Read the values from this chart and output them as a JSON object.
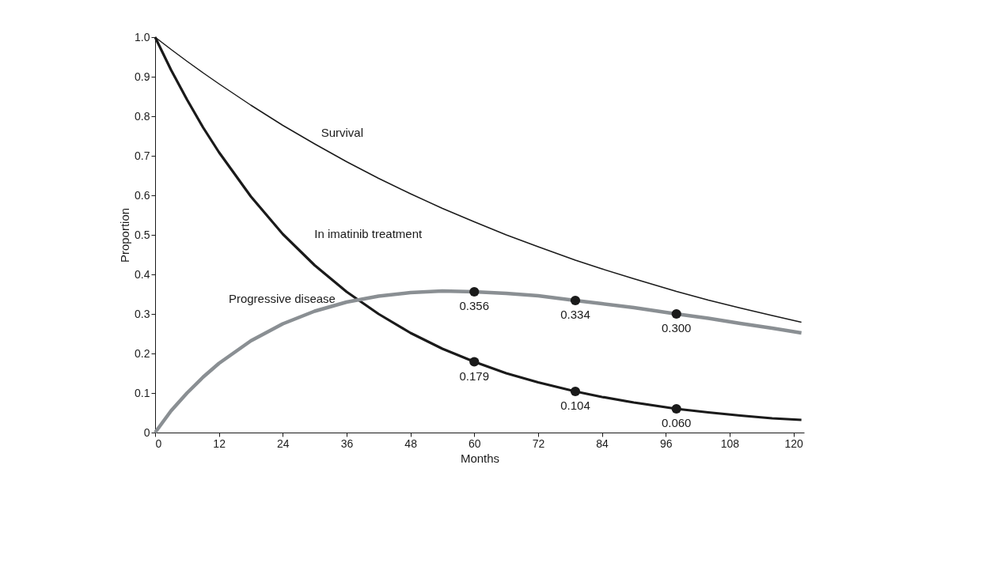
{
  "chart_data": {
    "type": "line",
    "xlabel": "Months",
    "ylabel": "Proportion",
    "xlim": [
      0,
      122
    ],
    "xticks": [
      0,
      12,
      24,
      36,
      48,
      60,
      72,
      84,
      96,
      108,
      120
    ],
    "ylim": [
      0,
      1
    ],
    "yticks": [
      0,
      0.1,
      0.2,
      0.3,
      0.4,
      0.5,
      0.6,
      0.7,
      0.8,
      0.9,
      {
        "value": 1,
        "label": "1.0"
      }
    ],
    "grid": false,
    "marker": "none",
    "line_style": "solid",
    "x": [
      0,
      3,
      6,
      9,
      12,
      18,
      24,
      30,
      36,
      42,
      48,
      54,
      60,
      66,
      72,
      79,
      84,
      90,
      98,
      104,
      110,
      116,
      121.5
    ],
    "series": [
      {
        "name": "Survival",
        "color": "#1a1a1a",
        "values": [
          1.0,
          0.969,
          0.939,
          0.91,
          0.882,
          0.828,
          0.777,
          0.73,
          0.685,
          0.643,
          0.604,
          0.567,
          0.533,
          0.5,
          0.47,
          0.436,
          0.414,
          0.389,
          0.357,
          0.335,
          0.315,
          0.296,
          0.279
        ]
      },
      {
        "name": "In imatinib treatment",
        "color": "#1a1a1a",
        "values": [
          1.0,
          0.917,
          0.842,
          0.772,
          0.709,
          0.597,
          0.502,
          0.423,
          0.356,
          0.3,
          0.252,
          0.212,
          0.179,
          0.15,
          0.127,
          0.104,
          0.09,
          0.076,
          0.06,
          0.051,
          0.043,
          0.036,
          0.032
        ]
      },
      {
        "name": "Progressive disease",
        "color": "#8a8f93",
        "values": [
          0,
          0.055,
          0.1,
          0.14,
          0.175,
          0.232,
          0.275,
          0.307,
          0.33,
          0.345,
          0.354,
          0.358,
          0.356,
          0.352,
          0.346,
          0.334,
          0.326,
          0.316,
          0.3,
          0.289,
          0.276,
          0.264,
          0.252
        ]
      },
      {
        "type": "scatter",
        "marker": "circle",
        "color": "#1a1a1a",
        "x": [
          60,
          79,
          98
        ],
        "values": [
          0.356,
          0.334,
          0.3
        ],
        "value_labels": [
          "0.356",
          "0.334",
          "0.300"
        ]
      },
      {
        "type": "scatter",
        "marker": "circle",
        "color": "#1a1a1a",
        "x": [
          60,
          79,
          98
        ],
        "values": [
          0.179,
          0.104,
          0.06
        ],
        "value_labels": [
          "0.179",
          "0.104",
          "0.060"
        ]
      }
    ]
  }
}
